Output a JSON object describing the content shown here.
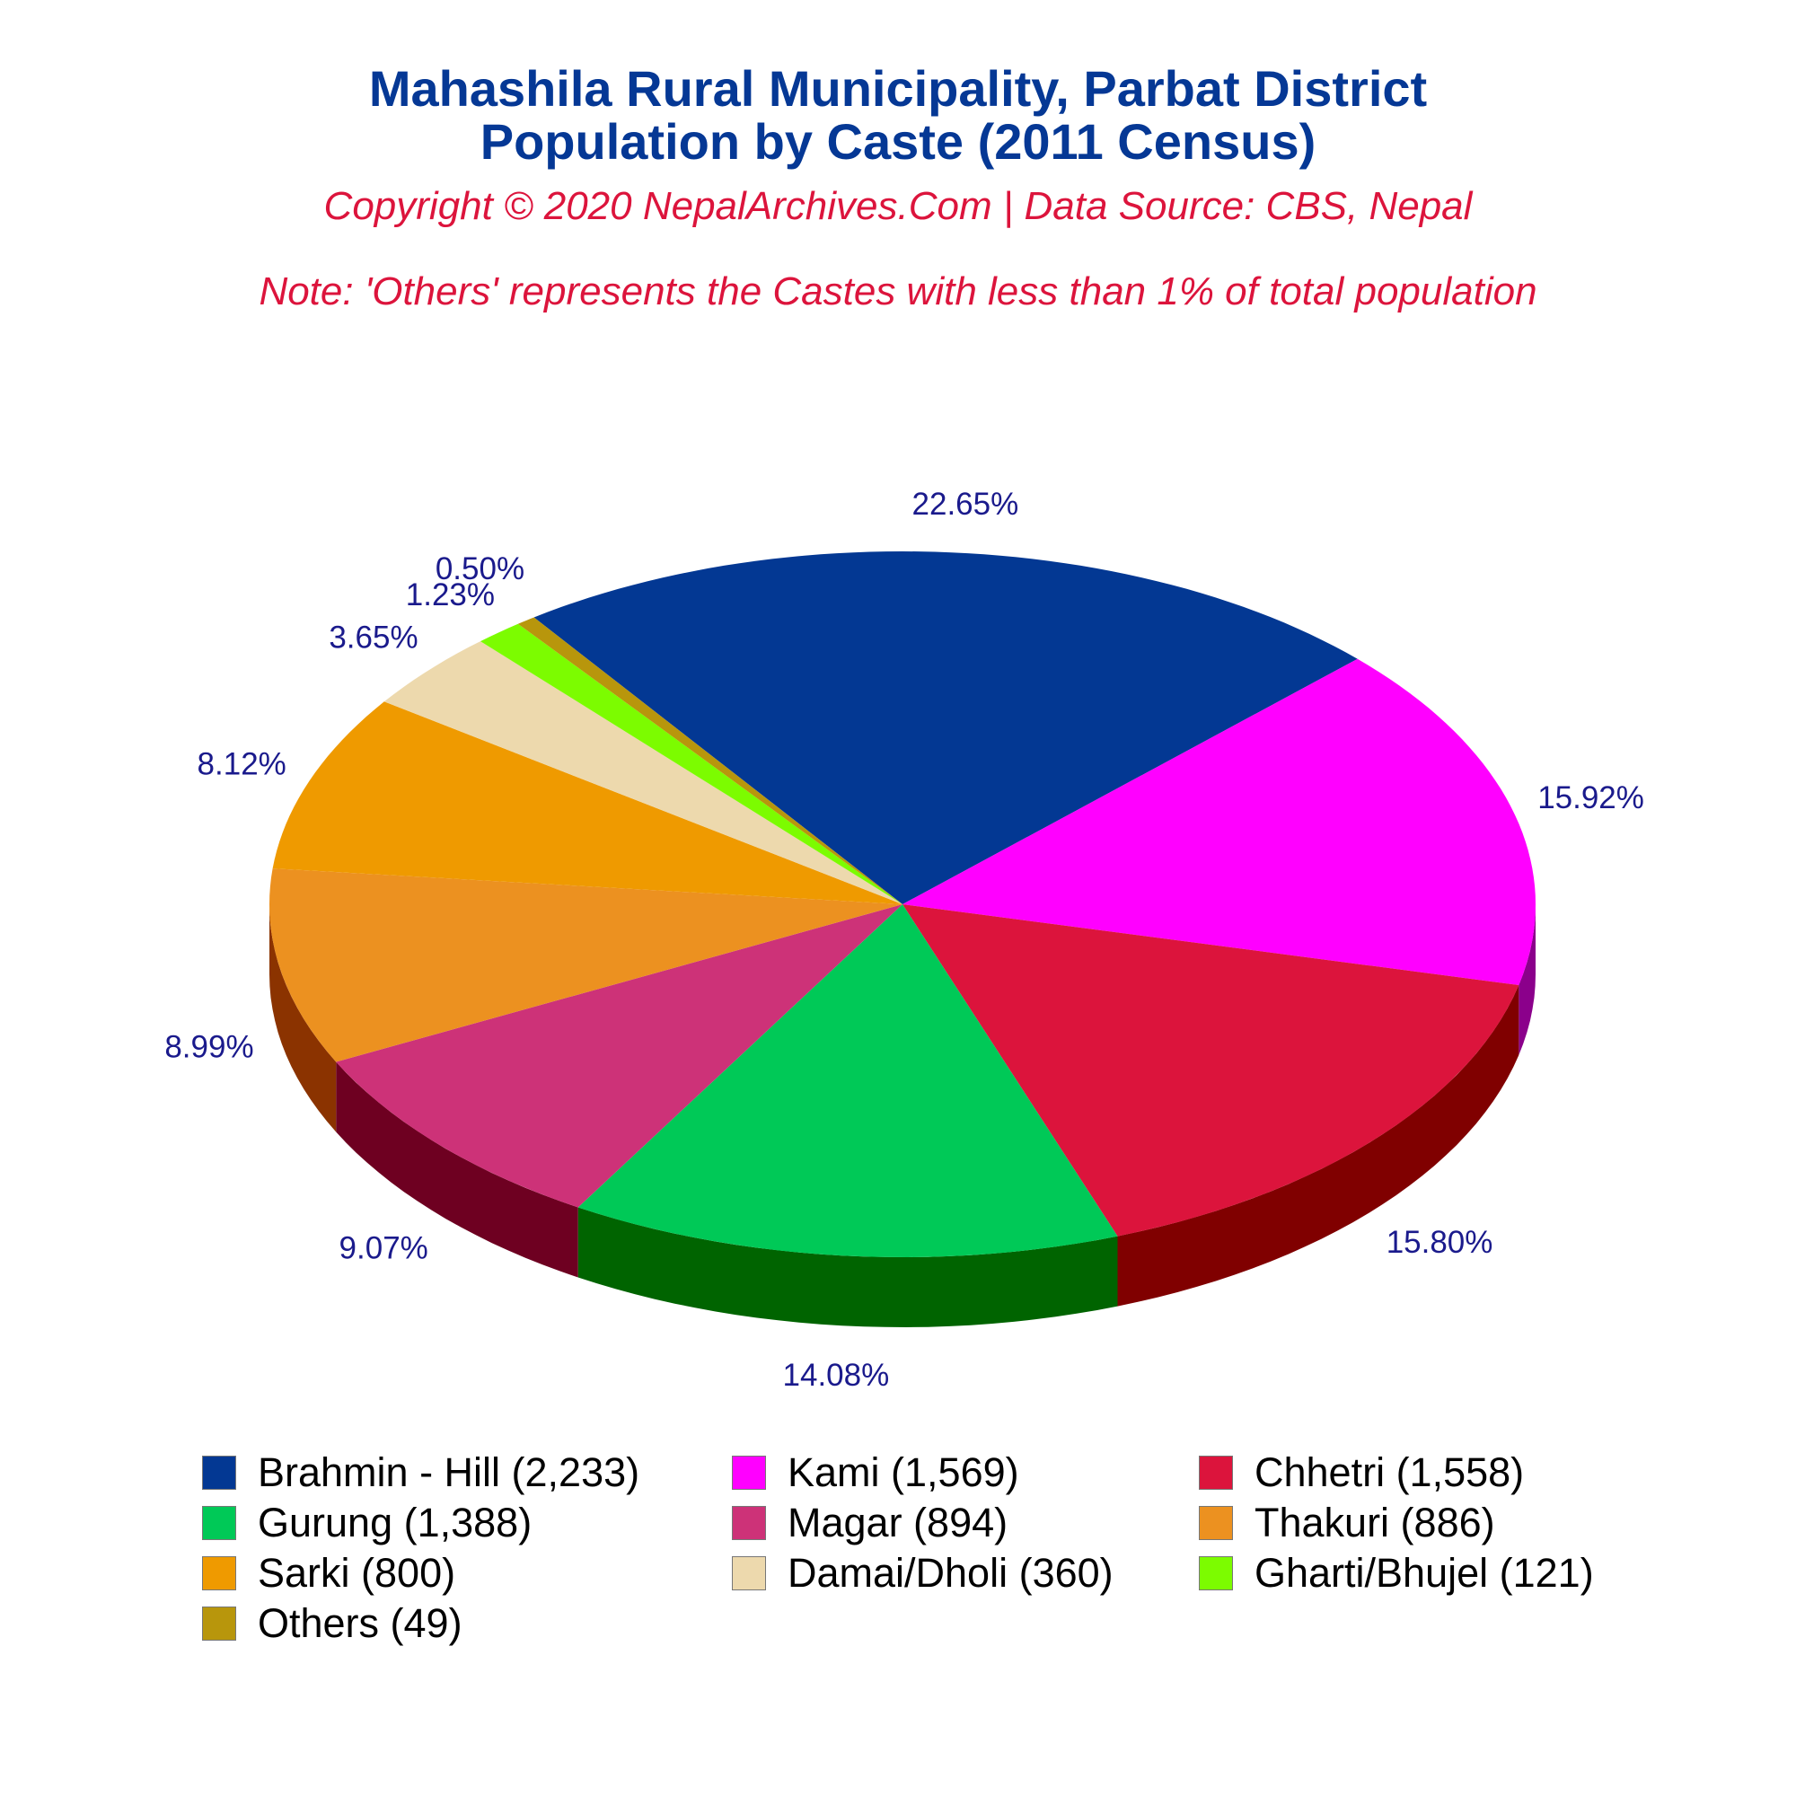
{
  "header": {
    "title_line1": "Mahashila Rural Municipality, Parbat District",
    "title_line2": "Population by Caste (2011 Census)",
    "copyright": "Copyright © 2020 NepalArchives.Com | Data Source: CBS, Nepal",
    "note": "Note: 'Others' represents the Castes with less than 1% of total population"
  },
  "chart_data": {
    "type": "pie",
    "style": "3d",
    "title": "Mahashila Rural Municipality, Parbat District Population by Caste (2011 Census)",
    "legend_position": "bottom",
    "categories": [
      "Brahmin - Hill",
      "Kami",
      "Chhetri",
      "Gurung",
      "Magar",
      "Thakuri",
      "Sarki",
      "Damai/Dholi",
      "Gharti/Bhujel",
      "Others"
    ],
    "values": [
      2233,
      1569,
      1558,
      1388,
      894,
      886,
      800,
      360,
      121,
      49
    ],
    "percent_labels": [
      "22.65%",
      "15.92%",
      "15.80%",
      "14.08%",
      "9.07%",
      "8.99%",
      "8.12%",
      "3.65%",
      "1.23%",
      "0.50%"
    ],
    "legend_labels": [
      "Brahmin - Hill (2,233)",
      "Kami (1,569)",
      "Chhetri (1,558)",
      "Gurung (1,388)",
      "Magar (894)",
      "Thakuri (886)",
      "Sarki (800)",
      "Damai/Dholi (360)",
      "Gharti/Bhujel (121)",
      "Others (49)"
    ],
    "colors": [
      "#033893",
      "#ff00ff",
      "#dc143c",
      "#00c957",
      "#cd3278",
      "#ec9120",
      "#ef9a00",
      "#edd9ad",
      "#7cfc00",
      "#b8960c"
    ],
    "side_colors": [
      "#021f55",
      "#8b008b",
      "#800000",
      "#006400",
      "#6e0021",
      "#8b3300",
      "#8b3300",
      "#8b7a5a",
      "#3a7a00",
      "#6b5600"
    ]
  }
}
